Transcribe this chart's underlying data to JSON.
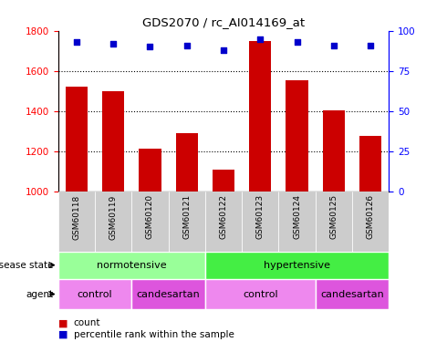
{
  "title": "GDS2070 / rc_AI014169_at",
  "samples": [
    "GSM60118",
    "GSM60119",
    "GSM60120",
    "GSM60121",
    "GSM60122",
    "GSM60123",
    "GSM60124",
    "GSM60125",
    "GSM60126"
  ],
  "counts": [
    1520,
    1500,
    1215,
    1290,
    1110,
    1750,
    1555,
    1405,
    1275
  ],
  "percentile_ranks": [
    93,
    92,
    90,
    91,
    88,
    95,
    93,
    91,
    91
  ],
  "ylim_left": [
    1000,
    1800
  ],
  "ylim_right": [
    0,
    100
  ],
  "yticks_left": [
    1000,
    1200,
    1400,
    1600,
    1800
  ],
  "yticks_right": [
    0,
    25,
    50,
    75,
    100
  ],
  "bar_color": "#cc0000",
  "dot_color": "#0000cc",
  "disease_state_groups": [
    {
      "label": "normotensive",
      "start": 0,
      "end": 4,
      "color": "#99ff99"
    },
    {
      "label": "hypertensive",
      "start": 4,
      "end": 9,
      "color": "#44ee44"
    }
  ],
  "agent_groups": [
    {
      "label": "control",
      "start": 0,
      "end": 2,
      "color": "#ee88ee"
    },
    {
      "label": "candesartan",
      "start": 2,
      "end": 4,
      "color": "#dd55dd"
    },
    {
      "label": "control",
      "start": 4,
      "end": 7,
      "color": "#ee88ee"
    },
    {
      "label": "candesartan",
      "start": 7,
      "end": 9,
      "color": "#dd55dd"
    }
  ],
  "legend_items": [
    {
      "label": "count",
      "color": "#cc0000"
    },
    {
      "label": "percentile rank within the sample",
      "color": "#0000cc"
    }
  ],
  "xtick_bg": "#cccccc",
  "left_label_color": "#444444",
  "border_color": "#000000"
}
